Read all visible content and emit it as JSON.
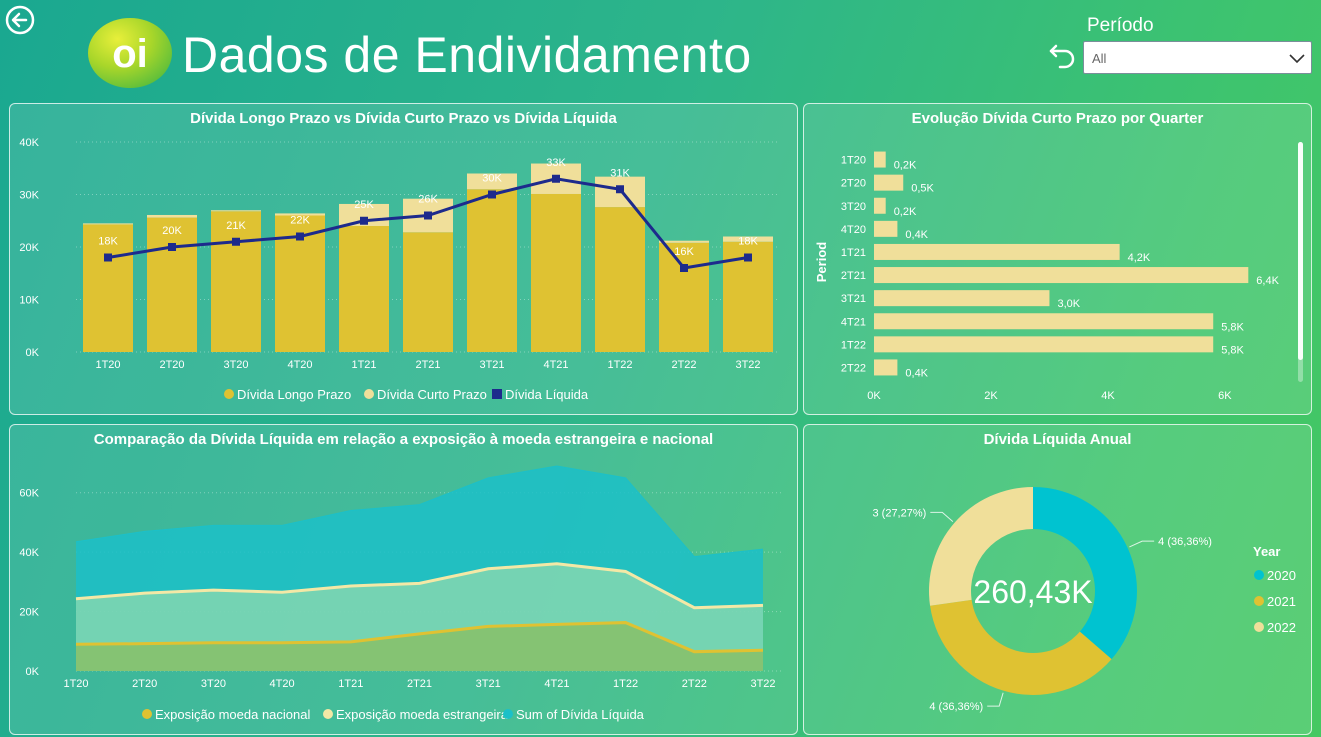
{
  "header": {
    "title": "Dados de Endividamento",
    "logo_text": "oi",
    "filter_label": "Período",
    "filter_value": "All"
  },
  "colors": {
    "longo": "#dfc232",
    "curto": "#f0df9a",
    "liquida": "#1d2a8c",
    "sum_area": "#1cc0c8",
    "nacional": "#dfc232",
    "estrangeira": "#f3e8a6",
    "donut_2020": "#00c3d0",
    "donut_2021": "#dfc232",
    "donut_2022": "#f0df9a"
  },
  "chart_data": [
    {
      "type": "bar",
      "title": "Dívida Longo Prazo vs Dívida Curto Prazo vs Dívida Líquida",
      "categories": [
        "1T20",
        "2T20",
        "3T20",
        "4T20",
        "1T21",
        "2T21",
        "3T21",
        "4T21",
        "1T22",
        "2T22",
        "3T22"
      ],
      "series": [
        {
          "name": "Dívida Longo Prazo",
          "kind": "stacked-bar",
          "values": [
            24.3,
            25.6,
            26.8,
            26.0,
            24.0,
            22.8,
            31.0,
            30.1,
            27.6,
            20.8,
            21.0
          ]
        },
        {
          "name": "Dívida Curto Prazo",
          "kind": "stacked-bar",
          "values": [
            0.2,
            0.5,
            0.2,
            0.4,
            4.2,
            6.4,
            3.0,
            5.8,
            5.8,
            0.4,
            1.0
          ]
        },
        {
          "name": "Dívida Líquida",
          "kind": "line",
          "values": [
            18,
            20,
            21,
            22,
            25,
            26,
            30,
            33,
            31,
            16,
            18
          ]
        }
      ],
      "data_labels": [
        "18K",
        "20K",
        "21K",
        "22K",
        "25K",
        "26K",
        "30K",
        "33K",
        "31K",
        "16K",
        "18K"
      ],
      "yticks": [
        "0K",
        "10K",
        "20K",
        "30K",
        "40K"
      ],
      "ylim": [
        0,
        40
      ],
      "legend": [
        "Dívida Longo Prazo",
        "Dívida Curto Prazo",
        "Dívida Líquida"
      ],
      "legend_position": "bottom-center"
    },
    {
      "type": "bar",
      "orientation": "horizontal",
      "title": "Evolução Dívida Curto Prazo por Quarter",
      "ylabel": "Period",
      "categories": [
        "1T20",
        "2T20",
        "3T20",
        "4T20",
        "1T21",
        "2T21",
        "3T21",
        "4T21",
        "1T22",
        "2T22"
      ],
      "values": [
        0.2,
        0.5,
        0.2,
        0.4,
        4.2,
        6.4,
        3.0,
        5.8,
        5.8,
        0.4
      ],
      "data_labels": [
        "0,2K",
        "0,5K",
        "0,2K",
        "0,4K",
        "4,2K",
        "6,4K",
        "3,0K",
        "5,8K",
        "5,8K",
        "0,4K"
      ],
      "xticks": [
        "0K",
        "2K",
        "4K",
        "6K"
      ],
      "xlim": [
        0,
        6.6
      ]
    },
    {
      "type": "area",
      "title": "Comparação da Dívida Líquida em relação a exposição à moeda estrangeira e nacional",
      "categories": [
        "1T20",
        "2T20",
        "3T20",
        "4T20",
        "1T21",
        "2T21",
        "3T21",
        "4T21",
        "1T22",
        "2T22",
        "3T22"
      ],
      "series": [
        {
          "name": "Exposição moeda nacional",
          "values": [
            9,
            9.2,
            9.5,
            9.5,
            9.8,
            12.5,
            15,
            15.7,
            16.3,
            6.5,
            7
          ]
        },
        {
          "name": "Exposição moeda estrangeira",
          "values": [
            24.3,
            26.2,
            27.2,
            26.5,
            28.6,
            29.5,
            34.4,
            36.1,
            33.5,
            21.3,
            22.1
          ]
        },
        {
          "name": "Sum of Dívida Líquida",
          "values": [
            43.5,
            47,
            49,
            49,
            54,
            56,
            65,
            69,
            65,
            38.5,
            41
          ]
        }
      ],
      "yticks": [
        "0K",
        "20K",
        "40K",
        "60K"
      ],
      "ylim": [
        0,
        70
      ],
      "legend": [
        "Exposição moeda nacional",
        "Exposição moeda estrangeira",
        "Sum of Dívida Líquida"
      ],
      "legend_position": "bottom-center"
    },
    {
      "type": "pie",
      "subtype": "donut",
      "title": "Dívida Líquida Anual",
      "center_label": "260,43K",
      "legend_title": "Year",
      "slices": [
        {
          "name": "2020",
          "value": 4,
          "label": "4 (36,36%)"
        },
        {
          "name": "2021",
          "value": 4,
          "label": "4 (36,36%)"
        },
        {
          "name": "2022",
          "value": 3,
          "label": "3 (27,27%)"
        }
      ],
      "legend_position": "right"
    }
  ]
}
